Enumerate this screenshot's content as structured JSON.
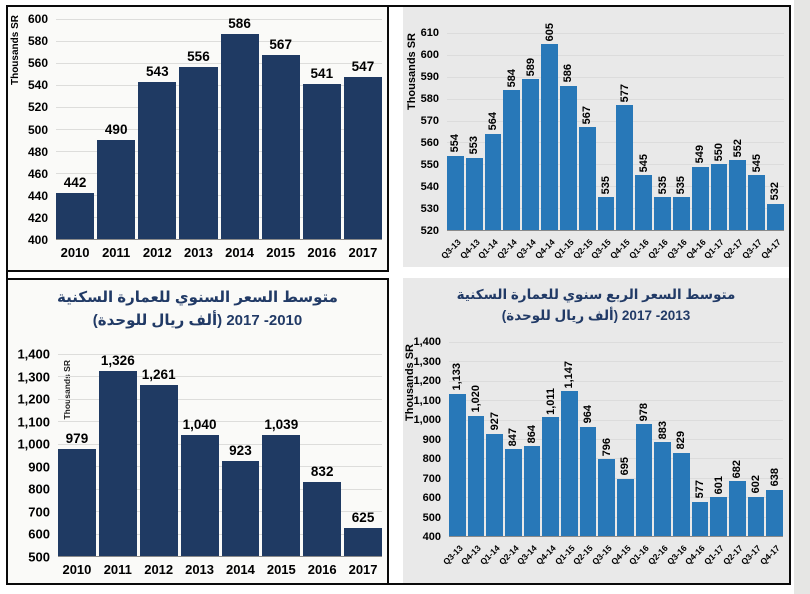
{
  "colors": {
    "navy_bar": "#1f3a63",
    "blue_bar": "#2878b8",
    "left_panel_bg": "#fafaf8",
    "right_panel_bg": "#e9e9e9",
    "frame_border": "#0a0a0a",
    "title_text": "#213a66"
  },
  "chart_data": [
    {
      "position": "top-left",
      "type": "bar",
      "title_lines": [],
      "ylabel": "Thousands SR",
      "categories": [
        "2010",
        "2011",
        "2012",
        "2013",
        "2014",
        "2015",
        "2016",
        "2017"
      ],
      "values": [
        442,
        490,
        543,
        556,
        586,
        567,
        541,
        547
      ],
      "ylim": [
        400,
        600
      ],
      "ytick_step": 20,
      "bar_color": "#1f3a63",
      "comma_format": false,
      "value_labels": "horizontal",
      "xtick_rotation": 0,
      "grid": true,
      "legend": "none"
    },
    {
      "position": "top-right",
      "type": "bar",
      "title_lines": [],
      "ylabel": "Thousands SR",
      "categories": [
        "Q3-13",
        "Q4-13",
        "Q1-14",
        "Q2-14",
        "Q3-14",
        "Q4-14",
        "Q1-15",
        "Q2-15",
        "Q3-15",
        "Q4-15",
        "Q1-16",
        "Q2-16",
        "Q3-16",
        "Q4-16",
        "Q1-17",
        "Q2-17",
        "Q3-17",
        "Q4-17"
      ],
      "values": [
        554,
        553,
        564,
        584,
        589,
        605,
        586,
        567,
        535,
        577,
        545,
        535,
        535,
        549,
        550,
        552,
        545,
        532
      ],
      "ylim": [
        520,
        610
      ],
      "ytick_step": 10,
      "bar_color": "#2878b8",
      "comma_format": false,
      "value_labels": "vertical",
      "xtick_rotation": 45,
      "grid": true,
      "legend": "none"
    },
    {
      "position": "bottom-left",
      "type": "bar",
      "title_lines": [
        "متوسط السعر السنوي للعمارة السكنية",
        "(ألف ريال للوحدة)  2010- 2017"
      ],
      "ylabel": "Thousands SR",
      "categories": [
        "2010",
        "2011",
        "2012",
        "2013",
        "2014",
        "2015",
        "2016",
        "2017"
      ],
      "values": [
        979,
        1326,
        1261,
        1040,
        923,
        1039,
        832,
        625
      ],
      "ylim": [
        500,
        1400
      ],
      "ytick_step": 100,
      "bar_color": "#1f3a63",
      "comma_format": true,
      "value_labels": "horizontal",
      "xtick_rotation": 0,
      "grid": true,
      "legend": "none"
    },
    {
      "position": "bottom-right",
      "type": "bar",
      "title_lines": [
        "متوسط السعر الربع سنوي للعمارة السكنية",
        "(ألف ريال للوحدة) 2013- 2017"
      ],
      "ylabel": "Thousands SR",
      "categories": [
        "Q3-13",
        "Q4-13",
        "Q1-14",
        "Q2-14",
        "Q3-14",
        "Q4-14",
        "Q1-15",
        "Q2-15",
        "Q3-15",
        "Q4-15",
        "Q1-16",
        "Q2-16",
        "Q3-16",
        "Q4-16",
        "Q1-17",
        "Q2-17",
        "Q3-17",
        "Q4-17"
      ],
      "values": [
        1133,
        1020,
        927,
        847,
        864,
        1011,
        1147,
        964,
        796,
        695,
        978,
        883,
        829,
        577,
        601,
        682,
        602,
        638
      ],
      "ylim": [
        400,
        1400
      ],
      "ytick_step": 100,
      "bar_color": "#2878b8",
      "comma_format": true,
      "value_labels": "vertical",
      "xtick_rotation": 45,
      "grid": true,
      "legend": "none"
    }
  ]
}
